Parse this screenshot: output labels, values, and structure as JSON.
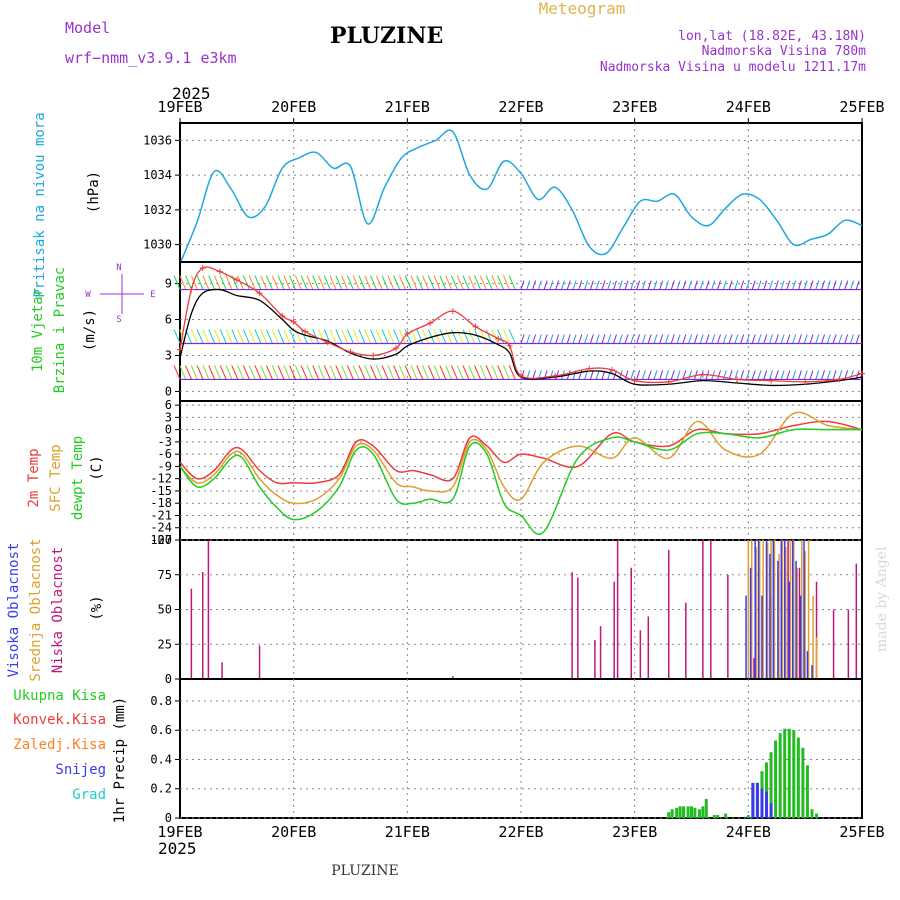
{
  "header": {
    "model_label": "Model",
    "model_name": "wrf−nmm_v3.9.1  e3km",
    "title": "PLUZINE",
    "meteogram": "Meteogram",
    "coords": "lon,lat (18.82E, 43.18N)",
    "elevation": "Nadmorska Visina 780m",
    "model_elevation": "Nadmorska Visina u modelu 1211.17m",
    "year": "2025",
    "footer_station": "PLUZINE",
    "watermark": "made by Angel"
  },
  "colors": {
    "pressure": "#1ea7e0",
    "temp2m": "#ee3b3b",
    "sfc": "#dd9f2e",
    "dewpt": "#22cc22",
    "high_cloud": "#3b3bee",
    "mid_cloud": "#dd9f2e",
    "low_cloud": "#c01678",
    "total_precip": "#22bb22",
    "conv_precip": "#ee3b3b",
    "freezing": "#ff7f27",
    "snow": "#3b3bee",
    "graupel": "#22cccc",
    "purple_text": "#9933cc"
  },
  "chart_data": [
    {
      "type": "line",
      "panel": "pressure",
      "ylabel_lines": [
        "Pritisak na nivou mora",
        "(hPa)"
      ],
      "x_ticks": [
        "19FEB",
        "20FEB",
        "21FEB",
        "22FEB",
        "23FEB",
        "24FEB",
        "25FEB"
      ],
      "ylim": [
        1029,
        1037
      ],
      "y_ticks": [
        1030,
        1032,
        1034,
        1036
      ],
      "grid": true,
      "series": [
        {
          "x": [
            0,
            0.15,
            0.3,
            0.45,
            0.6,
            0.75,
            0.9,
            1.05,
            1.2,
            1.35,
            1.5,
            1.65,
            1.8,
            1.95,
            2.1,
            2.25,
            2.4,
            2.55,
            2.7,
            2.85,
            3.0,
            3.15,
            3.3,
            3.45,
            3.6,
            3.75,
            3.9,
            4.05,
            4.2,
            4.35,
            4.5,
            4.65,
            4.8,
            4.95,
            5.1,
            5.25,
            5.4,
            5.55,
            5.7,
            5.85,
            6.0
          ],
          "values": [
            1028.9,
            1031.3,
            1034.2,
            1033.2,
            1031.6,
            1032.2,
            1034.4,
            1035.0,
            1035.3,
            1034.4,
            1034.5,
            1031.2,
            1033.3,
            1035.0,
            1035.6,
            1036.0,
            1036.5,
            1034.0,
            1033.2,
            1034.8,
            1034.1,
            1032.6,
            1033.3,
            1032.0,
            1029.9,
            1029.5,
            1031.0,
            1032.5,
            1032.5,
            1032.9,
            1031.6,
            1031.1,
            1032.1,
            1032.9,
            1032.6,
            1031.4,
            1030.0,
            1030.3,
            1030.6,
            1031.4,
            1031.1
          ]
        }
      ]
    },
    {
      "type": "line",
      "panel": "wind",
      "ylabel_lines": [
        "10m Vjetar",
        "Brzina i Pravac",
        "(m/s)"
      ],
      "ylim": [
        -0.8,
        10.8
      ],
      "y_ticks": [
        0,
        3,
        6,
        9
      ],
      "compass": {
        "n": "N",
        "s": "S",
        "w": "W",
        "e": "E"
      },
      "grid": true,
      "barb_rows": [
        1,
        4,
        8.5
      ],
      "series": [
        {
          "name": "speed",
          "x": [
            0,
            0.1,
            0.2,
            0.35,
            0.5,
            0.7,
            0.9,
            1.0,
            1.1,
            1.3,
            1.5,
            1.7,
            1.9,
            2.0,
            2.2,
            2.4,
            2.6,
            2.8,
            2.9,
            3.0,
            3.3,
            3.6,
            3.8,
            4.0,
            4.3,
            4.6,
            4.9,
            5.2,
            5.5,
            5.8,
            6.0
          ],
          "values": [
            2.8,
            6.5,
            8.2,
            8.5,
            8.0,
            7.6,
            6.0,
            5.1,
            4.7,
            4.2,
            3.2,
            2.7,
            3.1,
            3.8,
            4.5,
            4.9,
            4.7,
            3.9,
            3.2,
            1.2,
            1.2,
            1.7,
            1.5,
            0.6,
            0.6,
            0.9,
            0.7,
            0.5,
            0.6,
            0.9,
            1.2
          ]
        },
        {
          "name": "gust",
          "x": [
            0,
            0.1,
            0.2,
            0.35,
            0.5,
            0.7,
            0.9,
            1.0,
            1.1,
            1.3,
            1.5,
            1.7,
            1.9,
            2.0,
            2.2,
            2.4,
            2.6,
            2.8,
            2.9,
            3.0,
            3.3,
            3.6,
            3.8,
            4.0,
            4.3,
            4.6,
            4.9,
            5.2,
            5.5,
            5.8,
            6.0
          ],
          "values": [
            3.5,
            8.5,
            10.3,
            10.0,
            9.3,
            8.2,
            6.3,
            5.8,
            5.0,
            4.1,
            3.3,
            3.0,
            3.6,
            4.8,
            5.7,
            6.7,
            5.4,
            4.4,
            3.8,
            1.3,
            1.3,
            1.9,
            1.8,
            0.9,
            0.8,
            1.4,
            1.0,
            0.9,
            0.8,
            1.0,
            1.5
          ]
        }
      ]
    },
    {
      "type": "line",
      "panel": "temperature",
      "ylabel_lines": [
        "2m Temp",
        "SFC Temp",
        "dewpt Temp",
        "(C)"
      ],
      "ylim": [
        -27,
        7
      ],
      "y_ticks": [
        6,
        3,
        0,
        -3,
        -6,
        -9,
        -12,
        -15,
        -18,
        -21,
        -24,
        -27
      ],
      "grid": true,
      "series": [
        {
          "name": "2m Temp",
          "x": [
            0,
            0.15,
            0.3,
            0.45,
            0.55,
            0.7,
            0.85,
            1.0,
            1.2,
            1.4,
            1.55,
            1.7,
            1.9,
            2.05,
            2.2,
            2.4,
            2.55,
            2.7,
            2.85,
            3.0,
            3.2,
            3.5,
            3.8,
            4.0,
            4.3,
            4.55,
            4.8,
            5.1,
            5.4,
            5.7,
            6.0
          ],
          "values": [
            -8,
            -12,
            -10,
            -5,
            -5,
            -10,
            -13,
            -13,
            -13,
            -11,
            -3,
            -4,
            -10,
            -10,
            -11,
            -12,
            -2,
            -4,
            -8,
            -6,
            -7,
            -9,
            -1,
            -3,
            -4,
            0,
            -1,
            -1,
            1,
            2,
            0
          ]
        },
        {
          "name": "SFC Temp",
          "x": [
            0,
            0.15,
            0.3,
            0.45,
            0.55,
            0.7,
            0.85,
            1.0,
            1.2,
            1.4,
            1.55,
            1.7,
            1.9,
            2.05,
            2.2,
            2.4,
            2.55,
            2.7,
            2.85,
            3.0,
            3.2,
            3.5,
            3.8,
            4.0,
            4.3,
            4.55,
            4.8,
            5.1,
            5.4,
            5.7,
            6.0
          ],
          "values": [
            -9,
            -13,
            -11,
            -6,
            -6,
            -12,
            -16,
            -18,
            -17,
            -12,
            -4,
            -5,
            -13,
            -14,
            -15,
            -14,
            -3,
            -5,
            -14,
            -17,
            -8,
            -4,
            -7,
            -2,
            -7,
            2,
            -5,
            -6,
            4,
            1,
            0
          ]
        },
        {
          "name": "dewpt Temp",
          "x": [
            0,
            0.15,
            0.3,
            0.45,
            0.55,
            0.7,
            0.85,
            1.0,
            1.2,
            1.4,
            1.55,
            1.7,
            1.9,
            2.05,
            2.2,
            2.4,
            2.55,
            2.7,
            2.85,
            3.0,
            3.2,
            3.5,
            3.8,
            4.0,
            4.3,
            4.55,
            4.8,
            5.1,
            5.4,
            5.7,
            6.0
          ],
          "values": [
            -9,
            -14,
            -12,
            -7,
            -7,
            -14,
            -19,
            -22,
            -20,
            -14,
            -5,
            -6,
            -17,
            -18,
            -17,
            -17,
            -4,
            -6,
            -18,
            -21,
            -25,
            -7,
            -2,
            -3,
            -5,
            -1,
            -1,
            -2,
            0,
            0,
            0
          ]
        }
      ]
    },
    {
      "type": "bar",
      "panel": "clouds",
      "ylabel_lines": [
        "Visoka Oblacnost",
        "Srednja Oblacnost",
        "Niska Oblacnost",
        "(%)"
      ],
      "ylim": [
        0,
        100
      ],
      "y_ticks": [
        0,
        25,
        50,
        75,
        100
      ],
      "grid": true,
      "series": [
        {
          "name": "Niska Oblacnost",
          "x": [
            0.1,
            0.2,
            0.25,
            0.37,
            0.7,
            2.4,
            3.45,
            3.5,
            3.65,
            3.7,
            3.82,
            3.85,
            3.97,
            4.05,
            4.12,
            4.3,
            4.45,
            4.6,
            4.67,
            4.82,
            5.05,
            5.2,
            5.35,
            5.45,
            5.6,
            5.75,
            5.88,
            5.95
          ],
          "values": [
            65,
            77,
            100,
            12,
            24,
            2,
            77,
            73,
            28,
            38,
            70,
            100,
            80,
            35,
            45,
            93,
            55,
            100,
            100,
            75,
            15,
            60,
            100,
            80,
            70,
            50,
            50,
            83
          ]
        },
        {
          "name": "Srednja Oblacnost",
          "x": [
            5.0,
            5.03,
            5.07,
            5.1,
            5.13,
            5.17,
            5.2,
            5.23,
            5.27,
            5.3,
            5.33,
            5.37,
            5.4,
            5.43,
            5.47,
            5.5,
            5.53,
            5.57,
            5.6
          ],
          "values": [
            100,
            100,
            95,
            100,
            100,
            98,
            100,
            100,
            90,
            100,
            95,
            100,
            100,
            80,
            100,
            92,
            100,
            60,
            30
          ]
        },
        {
          "name": "Visoka Oblacnost",
          "x": [
            4.98,
            5.02,
            5.06,
            5.09,
            5.12,
            5.16,
            5.19,
            5.22,
            5.26,
            5.29,
            5.32,
            5.36,
            5.39,
            5.42,
            5.46,
            5.49,
            5.52,
            5.56
          ],
          "values": [
            60,
            80,
            100,
            100,
            60,
            100,
            90,
            100,
            85,
            100,
            100,
            70,
            100,
            85,
            60,
            100,
            20,
            10
          ]
        }
      ]
    },
    {
      "type": "bar",
      "panel": "precip",
      "ylabel_lines": [
        "1hr Precip (mm)"
      ],
      "legend": [
        "Ukupna Kisa",
        "Konvek.Kisa",
        "Zaledj.Kisa",
        "Snijeg",
        "Grad"
      ],
      "ylim": [
        0,
        0.95
      ],
      "y_ticks": [
        0,
        0.2,
        0.4,
        0.6,
        0.8
      ],
      "grid": true,
      "series": [
        {
          "name": "Ukupna Kisa",
          "x": [
            4.3,
            4.33,
            4.37,
            4.4,
            4.43,
            4.47,
            4.5,
            4.53,
            4.57,
            4.6,
            4.63,
            4.7,
            4.73,
            4.8,
            5.0,
            5.04,
            5.08,
            5.12,
            5.16,
            5.2,
            5.24,
            5.28,
            5.32,
            5.36,
            5.4,
            5.44,
            5.48,
            5.52,
            5.56,
            5.6
          ],
          "values": [
            0.04,
            0.06,
            0.07,
            0.08,
            0.08,
            0.08,
            0.08,
            0.07,
            0.06,
            0.08,
            0.13,
            0.02,
            0.02,
            0.03,
            0.02,
            0.24,
            0.24,
            0.32,
            0.38,
            0.45,
            0.53,
            0.58,
            0.61,
            0.61,
            0.6,
            0.55,
            0.48,
            0.36,
            0.06,
            0.03
          ]
        },
        {
          "name": "Snijeg",
          "x": [
            5.04,
            5.08,
            5.12,
            5.16,
            5.2
          ],
          "values": [
            0.24,
            0.24,
            0.2,
            0.18,
            0.1
          ]
        }
      ]
    }
  ]
}
